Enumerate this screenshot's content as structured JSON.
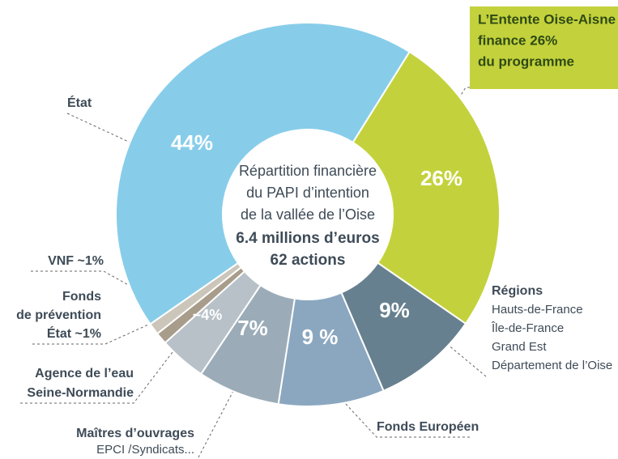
{
  "chart_data": {
    "type": "donut",
    "center_text": [
      "Répartition financière",
      "du PAPI d’intention",
      "de la vallée de l’Oise"
    ],
    "center_bold": [
      "6.4 millions d’euros",
      "62 actions"
    ],
    "categories": [
      [
        "L’Entente Oise-Aisne",
        "finance 26%",
        "du programme"
      ],
      [
        "Régions"
      ],
      [
        "Fonds Européen"
      ],
      [
        "Maîtres d’ouvrages"
      ],
      [
        "Agence de l’eau",
        "Seine-Normandie"
      ],
      [
        "Fonds",
        "de prévention",
        "État ~1%"
      ],
      [
        "VNF ~1%"
      ],
      [
        "État"
      ]
    ],
    "category_details": [
      null,
      [
        "Hauts-de-France",
        "Île-de-France",
        "Grand Est",
        "Département de l’Oise"
      ],
      null,
      [
        "EPCI /Syndicats..."
      ],
      null,
      null,
      null,
      null
    ],
    "values": [
      26,
      9,
      9,
      7,
      4,
      1,
      1,
      44
    ],
    "value_labels": [
      "26%",
      "9%",
      "9 %",
      "7%",
      "~4%",
      null,
      null,
      "44%"
    ],
    "colors": [
      "#c3d23c",
      "#67808f",
      "#8ba7c0",
      "#9bacb8",
      "#b8c1c8",
      "#a89c8a",
      "#cbc5ba",
      "#87cdea"
    ]
  }
}
